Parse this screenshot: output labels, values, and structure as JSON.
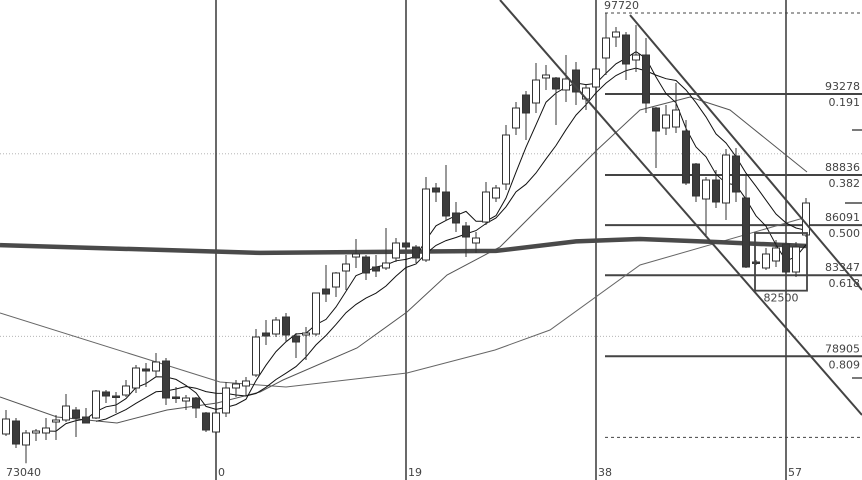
{
  "chart_data": {
    "type": "candlestick",
    "title": "",
    "xlabel": "",
    "ylabel": "",
    "x_tick_labels": [
      {
        "index": 0,
        "label": "0"
      },
      {
        "index": 19,
        "label": "19"
      },
      {
        "index": 38,
        "label": "38"
      },
      {
        "index": 57,
        "label": "57"
      }
    ],
    "first_index": -21,
    "candles": [
      [
        74646,
        75961,
        74536,
        75468
      ],
      [
        75358,
        75523,
        73879,
        74097
      ],
      [
        74043,
        74865,
        73040,
        74701
      ],
      [
        74701,
        74920,
        74262,
        74810
      ],
      [
        74701,
        75523,
        74317,
        74975
      ],
      [
        75303,
        75687,
        74317,
        75413
      ],
      [
        75413,
        76838,
        75303,
        76180
      ],
      [
        75961,
        76125,
        74481,
        75523
      ],
      [
        75577,
        76071,
        75249,
        75249
      ],
      [
        75523,
        77057,
        75468,
        77003
      ],
      [
        76948,
        77057,
        76345,
        76728
      ],
      [
        76728,
        76948,
        75797,
        76674
      ],
      [
        76783,
        77605,
        76674,
        77277
      ],
      [
        77167,
        78427,
        76893,
        78263
      ],
      [
        78208,
        78537,
        77222,
        78098
      ],
      [
        78098,
        79085,
        77769,
        78591
      ],
      [
        78646,
        78811,
        76235,
        76619
      ],
      [
        76674,
        77222,
        76345,
        76619
      ],
      [
        76454,
        76783,
        75961,
        76619
      ],
      [
        76619,
        76674,
        75523,
        76071
      ],
      [
        75797,
        75851,
        74755,
        74865
      ],
      [
        74755,
        75906,
        74646,
        75797
      ],
      [
        75797,
        77496,
        75577,
        77167
      ],
      [
        77167,
        77605,
        76674,
        77386
      ],
      [
        77277,
        77769,
        76783,
        77551
      ],
      [
        77879,
        80399,
        77769,
        79961
      ],
      [
        80180,
        80893,
        79523,
        80016
      ],
      [
        80126,
        81057,
        79961,
        80893
      ],
      [
        81057,
        81277,
        79687,
        80071
      ],
      [
        80016,
        80180,
        78811,
        79687
      ],
      [
        80071,
        80509,
        78701,
        80180
      ],
      [
        80126,
        82373,
        80016,
        82373
      ],
      [
        82591,
        83907,
        81879,
        82317
      ],
      [
        82701,
        83523,
        82153,
        83469
      ],
      [
        83578,
        84455,
        82537,
        83962
      ],
      [
        84345,
        85332,
        83743,
        84510
      ],
      [
        84345,
        84455,
        83085,
        83469
      ],
      [
        83797,
        84455,
        83249,
        83578
      ],
      [
        83743,
        85935,
        83633,
        84017
      ],
      [
        84291,
        85387,
        84071,
        85113
      ],
      [
        85113,
        85222,
        84784,
        84893
      ],
      [
        84893,
        85003,
        84017,
        84291
      ],
      [
        84181,
        88729,
        84071,
        88072
      ],
      [
        88127,
        88400,
        87359,
        87907
      ],
      [
        87907,
        89387,
        86373,
        86593
      ],
      [
        86757,
        87359,
        85715,
        86209
      ],
      [
        86045,
        86264,
        84345,
        85441
      ],
      [
        85113,
        85715,
        84565,
        85387
      ],
      [
        86264,
        88455,
        86099,
        87907
      ],
      [
        87578,
        88291,
        87359,
        88127
      ],
      [
        88345,
        91579,
        88017,
        91031
      ],
      [
        91414,
        92839,
        91031,
        92510
      ],
      [
        93223,
        93442,
        90757,
        92237
      ],
      [
        92785,
        94977,
        92237,
        94045
      ],
      [
        94155,
        94867,
        93497,
        94319
      ],
      [
        94155,
        94209,
        91579,
        93552
      ],
      [
        93497,
        95415,
        92839,
        94100
      ],
      [
        94593,
        95031,
        92675,
        93388
      ],
      [
        93004,
        93771,
        92401,
        93607
      ],
      [
        93661,
        94703,
        93497,
        94648
      ],
      [
        95251,
        97720,
        94319,
        96347
      ],
      [
        96401,
        96949,
        95853,
        96675
      ],
      [
        96511,
        96675,
        94045,
        94922
      ],
      [
        95141,
        97059,
        94483,
        95415
      ],
      [
        95415,
        96347,
        92237,
        92785
      ],
      [
        92510,
        92565,
        89223,
        91250
      ],
      [
        91414,
        92675,
        91031,
        92127
      ],
      [
        91469,
        93881,
        91141,
        92401
      ],
      [
        91250,
        91853,
        88291,
        88400
      ],
      [
        89442,
        89496,
        87359,
        87688
      ],
      [
        87524,
        88729,
        85551,
        88565
      ],
      [
        88565,
        89113,
        87031,
        87359
      ],
      [
        87305,
        90264,
        86373,
        89935
      ],
      [
        89880,
        90319,
        87359,
        87907
      ],
      [
        87578,
        88839,
        83743,
        83797
      ],
      [
        84071,
        84181,
        83907,
        84017
      ],
      [
        83743,
        84839,
        83633,
        84510
      ],
      [
        84126,
        85277,
        83797,
        84839
      ],
      [
        85058,
        85167,
        83469,
        83523
      ],
      [
        83523,
        85167,
        83249,
        84893
      ],
      [
        85551,
        87578,
        85441,
        87305
      ]
    ],
    "candle_fields": [
      "open",
      "high",
      "low",
      "close"
    ],
    "moving_averages_computed": [
      {
        "period": 5,
        "color": "#111111"
      },
      {
        "period": 10,
        "color": "#111111"
      }
    ],
    "ma_medium": {
      "color": "#555555",
      "points": [
        [
          -21.6,
          76674
        ],
        [
          -15.9,
          75577
        ],
        [
          -9.9,
          75249
        ],
        [
          -4.9,
          75961
        ],
        [
          0.1,
          76345
        ],
        [
          4.4,
          76948
        ],
        [
          6.7,
          77605
        ],
        [
          14.1,
          79359
        ],
        [
          19.1,
          81331
        ],
        [
          23.1,
          83359
        ],
        [
          28.4,
          84893
        ],
        [
          33.1,
          87469
        ],
        [
          38.1,
          90209
        ],
        [
          42.4,
          92401
        ],
        [
          47.4,
          93113
        ],
        [
          51.4,
          92401
        ],
        [
          59.1,
          89003
        ]
      ]
    },
    "ma_long": {
      "color": "#666666",
      "points": [
        [
          -21.6,
          81277
        ],
        [
          0.4,
          77496
        ],
        [
          7,
          77222
        ],
        [
          19.1,
          77988
        ],
        [
          27.9,
          79249
        ],
        [
          33.4,
          80345
        ],
        [
          42.4,
          83907
        ],
        [
          59.1,
          86537
        ]
      ]
    },
    "ma_thick": {
      "color": "#4a4a4a",
      "points": [
        [
          -21.6,
          85000
        ],
        [
          4.4,
          84570
        ],
        [
          28,
          84680
        ],
        [
          36,
          85200
        ],
        [
          42.4,
          85330
        ],
        [
          50,
          85170
        ],
        [
          59.1,
          84950
        ]
      ]
    },
    "grid_prices": [
      90000,
      80000
    ],
    "fibonacci": {
      "high": "97720",
      "high_value": 97720,
      "low_value": 74462,
      "levels": [
        {
          "price": "93278",
          "value": 93278,
          "ratio": "0.191"
        },
        {
          "price": "88836",
          "value": 88836,
          "ratio": "0.382"
        },
        {
          "price": "86091",
          "value": 86091,
          "ratio": "0.500"
        },
        {
          "price": "83347",
          "value": 83347,
          "ratio": "0.618"
        },
        {
          "price": "78905",
          "value": 78905,
          "ratio": "0.809"
        }
      ]
    },
    "channel_lines": [
      [
        [
          28.4,
          98429
        ],
        [
          64.6,
          75687
        ]
      ],
      [
        [
          41.4,
          97607
        ],
        [
          64.6,
          82537
        ]
      ]
    ],
    "box": {
      "from_index": 54,
      "to_index": 59,
      "low": 82500,
      "high": 85660,
      "label": "82500"
    },
    "low_label": "73040",
    "colors": {
      "bear": "#3c3c3c",
      "bull": "#ffffff",
      "outline": "#333333",
      "vline": "#444444"
    }
  }
}
